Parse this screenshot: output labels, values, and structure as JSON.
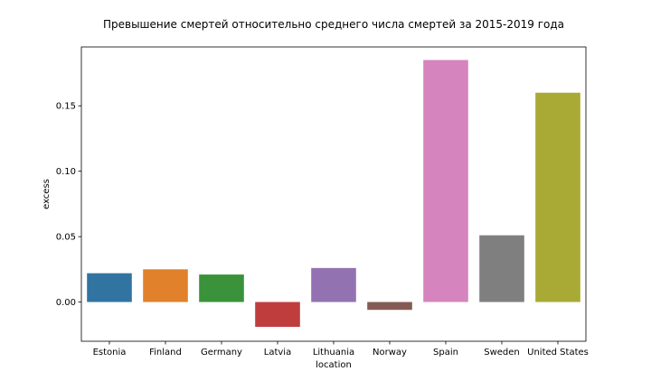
{
  "chart_data": {
    "type": "bar",
    "title": "Превышение смертей относительно среднего числа смертей за 2015-2019 года",
    "xlabel": "location",
    "ylabel": "excess",
    "categories": [
      "Estonia",
      "Finland",
      "Germany",
      "Latvia",
      "Lithuania",
      "Norway",
      "Spain",
      "Sweden",
      "United States"
    ],
    "values": [
      0.022,
      0.025,
      0.021,
      -0.019,
      0.026,
      -0.006,
      0.185,
      0.051,
      0.16
    ],
    "colors": [
      "#3274a1",
      "#e1812c",
      "#3a923a",
      "#c03d3e",
      "#9372b2",
      "#845b53",
      "#d684bd",
      "#7f7f7f",
      "#a9aa35"
    ],
    "ylim": [
      -0.03,
      0.195
    ],
    "yticks": [
      0.0,
      0.05,
      0.1,
      0.15
    ],
    "ytick_labels": [
      "0.00",
      "0.05",
      "0.10",
      "0.15"
    ],
    "grid": false,
    "legend": "none"
  }
}
